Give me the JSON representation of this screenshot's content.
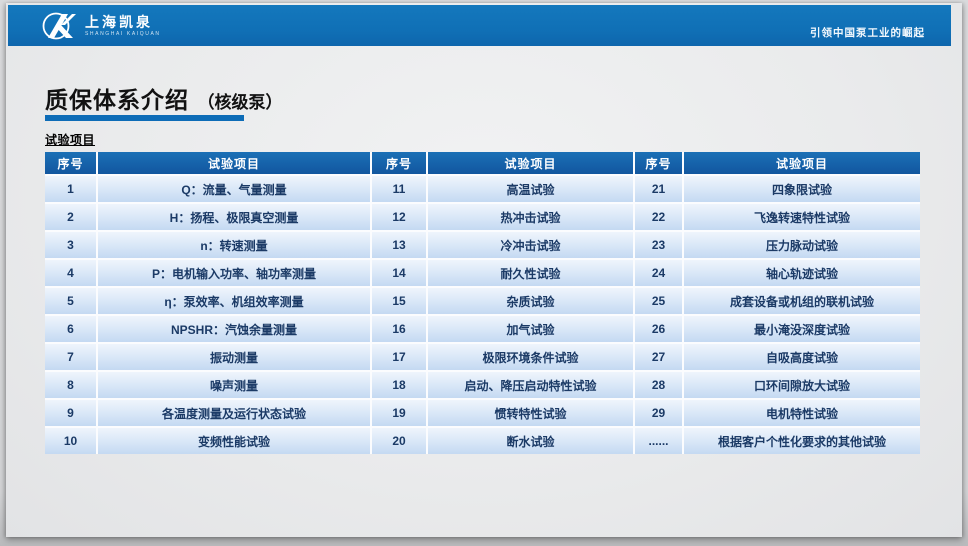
{
  "banner": {
    "logo_cn": "上海凯泉",
    "logo_en": "SHANGHAI KAIQUAN",
    "slogan": "引领中国泵工业的崛起",
    "bar_color": "#1070b6"
  },
  "title": {
    "main": "质保体系介绍",
    "sub": "（核级泵）",
    "rule_color": "#0d6cb7"
  },
  "section_label": "试验项目",
  "table": {
    "header": [
      "序号",
      "试验项目",
      "序号",
      "试验项目",
      "序号",
      "试验项目"
    ],
    "header_bg": "#12569f",
    "row_bg": "#c4d9f2",
    "row_text_color": "#1b3a66",
    "rows": [
      [
        "1",
        "Q：流量、气量测量",
        "11",
        "高温试验",
        "21",
        "四象限试验"
      ],
      [
        "2",
        "H：扬程、极限真空测量",
        "12",
        "热冲击试验",
        "22",
        "飞逸转速特性试验"
      ],
      [
        "3",
        "n：转速测量",
        "13",
        "冷冲击试验",
        "23",
        "压力脉动试验"
      ],
      [
        "4",
        "P：电机输入功率、轴功率测量",
        "14",
        "耐久性试验",
        "24",
        "轴心轨迹试验"
      ],
      [
        "5",
        "η：泵效率、机组效率测量",
        "15",
        "杂质试验",
        "25",
        "成套设备或机组的联机试验"
      ],
      [
        "6",
        "NPSHR：汽蚀余量测量",
        "16",
        "加气试验",
        "26",
        "最小淹没深度试验"
      ],
      [
        "7",
        "振动测量",
        "17",
        "极限环境条件试验",
        "27",
        "自吸高度试验"
      ],
      [
        "8",
        "噪声测量",
        "18",
        "启动、降压启动特性试验",
        "28",
        "口环间隙放大试验"
      ],
      [
        "9",
        "各温度测量及运行状态试验",
        "19",
        "惯转特性试验",
        "29",
        "电机特性试验"
      ],
      [
        "10",
        "变频性能试验",
        "20",
        "断水试验",
        "......",
        "根据客户个性化要求的其他试验"
      ]
    ]
  }
}
